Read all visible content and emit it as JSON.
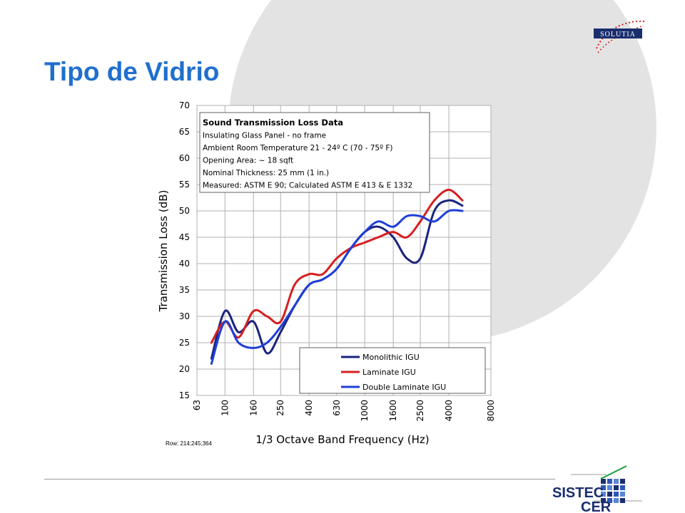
{
  "slide": {
    "title": "Tipo de Vidrio",
    "row_note": "Row: 214;245;364"
  },
  "logos": {
    "solutia": "SOLUTIA",
    "sistec_line1": "SISTEC",
    "sistec_line2": "CER"
  },
  "colors": {
    "title": "#1f6fcf",
    "background_circle": "#e3e3e3",
    "monolithic": "#1a237e",
    "laminate": "#d71f1f",
    "double_laminate": "#1f3fd8"
  },
  "chart_data": {
    "type": "line",
    "xlabel": "1/3 Octave Band Frequency (Hz)",
    "ylabel": "Transmission Loss (dB)",
    "ylim": [
      15,
      70
    ],
    "x_scale": "log",
    "x_ticks": [
      "63",
      "100",
      "160",
      "250",
      "400",
      "630",
      "1000",
      "1600",
      "2500",
      "4000",
      "8000"
    ],
    "y_ticks": [
      "15",
      "20",
      "25",
      "30",
      "35",
      "40",
      "45",
      "50",
      "55",
      "60",
      "65",
      "70"
    ],
    "grid": true,
    "legend_position": "bottom-right",
    "info_box": [
      "Sound Transmission Loss Data",
      "Insulating Glass Panel - no frame",
      "Ambient Room Temperature 21 - 24º C (70 - 75º F)",
      "Opening Area: ~ 18 sqft",
      "Nominal Thickness: 25 mm (1 in.)",
      "Measured:  ASTM E 90; Calculated ASTM E 413 & E 1332"
    ],
    "x": [
      80,
      100,
      125,
      160,
      200,
      250,
      315,
      400,
      500,
      630,
      800,
      1000,
      1250,
      1600,
      2000,
      2500,
      3150,
      4000,
      5000
    ],
    "series": [
      {
        "name": "Monolithic IGU",
        "color": "#1a237e",
        "values": [
          22,
          31,
          27,
          29,
          23,
          27,
          32,
          36,
          37,
          39,
          43,
          46,
          47,
          45,
          41,
          41,
          50,
          52,
          51
        ]
      },
      {
        "name": "Laminate IGU",
        "color": "#d71f1f",
        "values": [
          25,
          29,
          26,
          31,
          30,
          29,
          36,
          38,
          38,
          41,
          43,
          44,
          45,
          46,
          45,
          48,
          52,
          54,
          52
        ]
      },
      {
        "name": "Double Laminate IGU",
        "color": "#1f3fd8",
        "values": [
          21,
          29,
          25,
          24,
          25,
          28,
          32,
          36,
          37,
          39,
          43,
          46,
          48,
          47,
          49,
          49,
          48,
          50,
          50
        ]
      }
    ]
  }
}
